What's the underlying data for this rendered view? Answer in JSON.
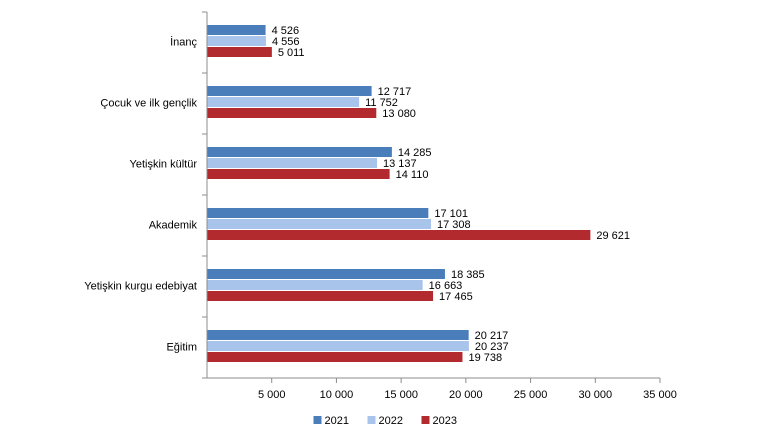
{
  "chart_data": {
    "type": "bar",
    "orientation": "horizontal",
    "categories": [
      "İnanç",
      "Çocuk ve ilk gençlik",
      "Yetişkin kültür",
      "Akademik",
      "Yetişkin kurgu edebiyat",
      "Eğitim"
    ],
    "series": [
      {
        "name": "2021",
        "color": "#4a7ebb",
        "values": [
          4526,
          12717,
          14285,
          17101,
          18385,
          20217
        ],
        "labels": [
          "4 526",
          "12 717",
          "14 285",
          "17 101",
          "18 385",
          "20 217"
        ]
      },
      {
        "name": "2022",
        "color": "#a9c4eb",
        "values": [
          4556,
          11752,
          13137,
          17308,
          16663,
          20237
        ],
        "labels": [
          "4 556",
          "11 752",
          "13 137",
          "17 308",
          "16 663",
          "20 237"
        ]
      },
      {
        "name": "2023",
        "color": "#b22a2e",
        "values": [
          5011,
          13080,
          14110,
          29621,
          17465,
          19738
        ],
        "labels": [
          "5 011",
          "13 080",
          "14 110",
          "29 621",
          "17 465",
          "19 738"
        ]
      }
    ],
    "xlim": [
      0,
      35000
    ],
    "xticks": [
      5000,
      10000,
      15000,
      20000,
      25000,
      30000,
      35000
    ],
    "xtick_labels": [
      "5 000",
      "10 000",
      "15 000",
      "20 000",
      "25 000",
      "30 000",
      "35 000"
    ],
    "title": "",
    "xlabel": "",
    "ylabel": "",
    "grid": false,
    "legend_position": "bottom-center"
  }
}
